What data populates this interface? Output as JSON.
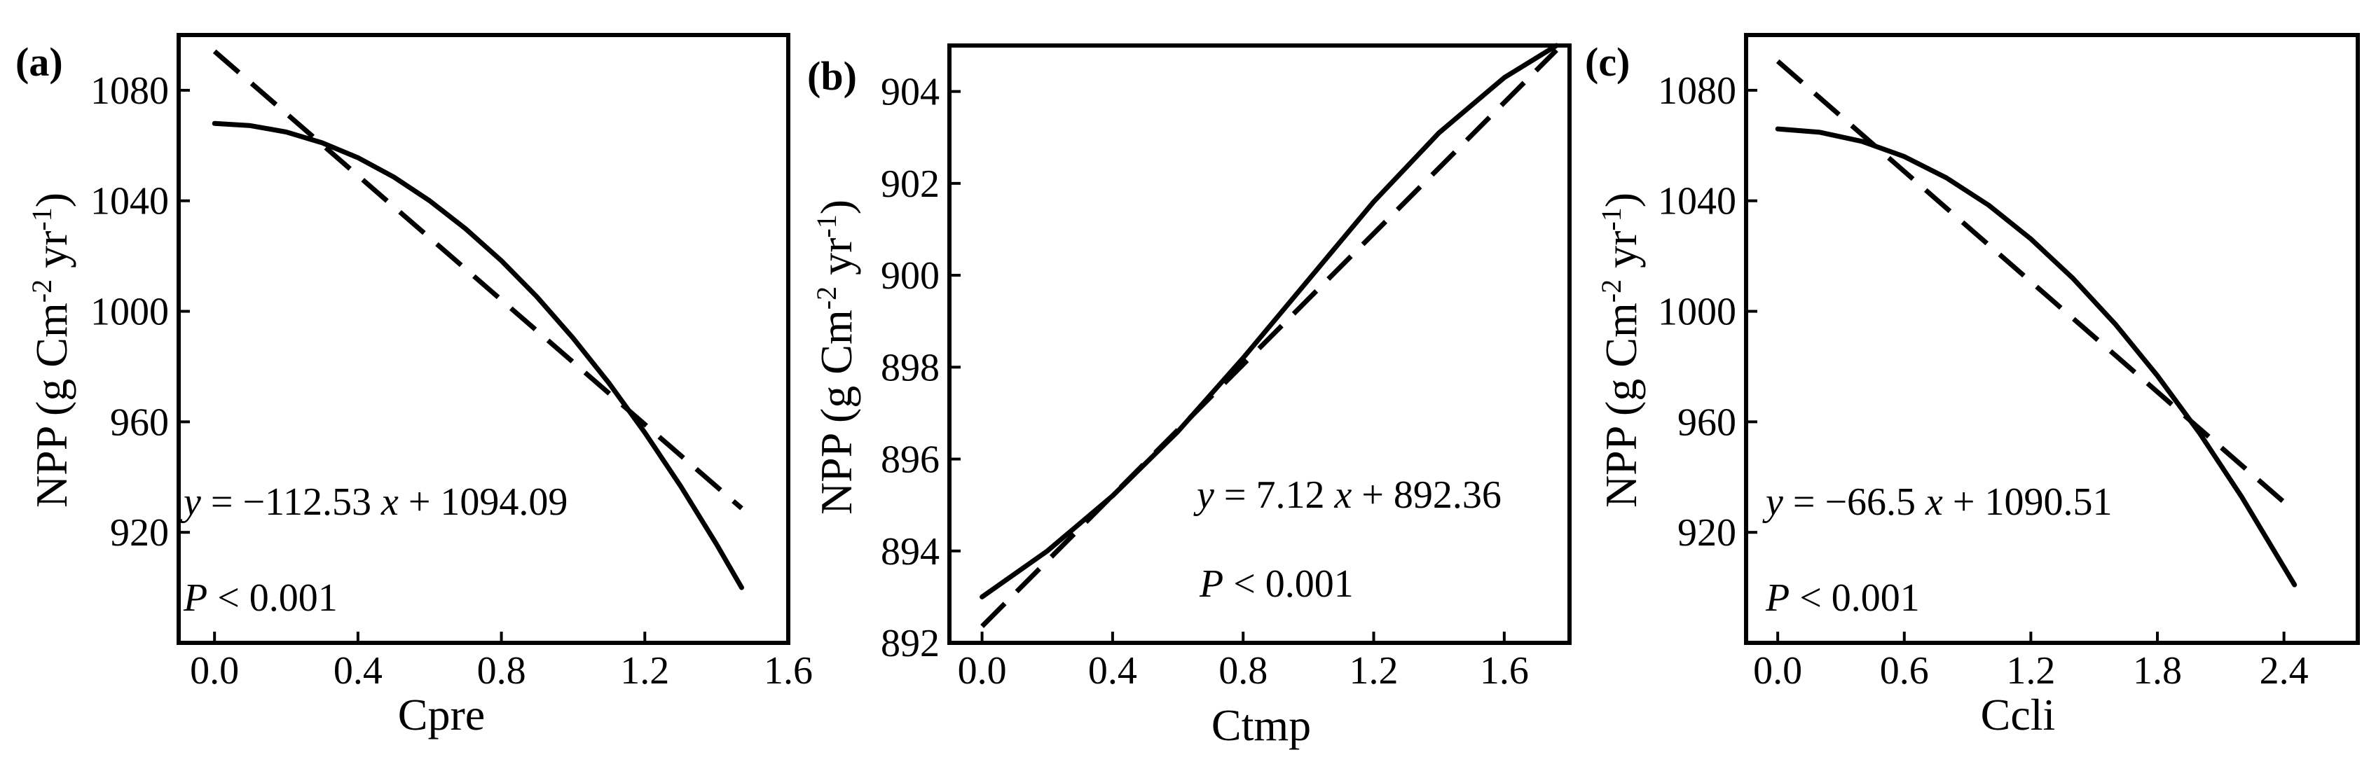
{
  "figure": {
    "panels": [
      {
        "label": "(a)"
      },
      {
        "label": "(b)"
      },
      {
        "label": "(c)"
      }
    ]
  },
  "chart_data": [
    {
      "type": "line",
      "panel_label": "(a)",
      "xlabel": "Cpre",
      "ylabel": {
        "prefix": "NPP (g Cm",
        "sup1": "-2",
        "mid": " yr",
        "sup2": "-1",
        "suffix": ")"
      },
      "xlim": [
        -0.1,
        1.6
      ],
      "ylim": [
        880,
        1100
      ],
      "xticks": [
        0.0,
        0.4,
        0.8,
        1.2,
        1.6
      ],
      "xtick_labels": [
        "0.0",
        "0.4",
        "0.8",
        "1.2",
        "1.6"
      ],
      "yticks": [
        920,
        960,
        1000,
        1040,
        1080
      ],
      "ytick_labels": [
        "920",
        "960",
        "1000",
        "1040",
        "1080"
      ],
      "series": [
        {
          "style": "solid",
          "x": [
            0.0,
            0.1,
            0.2,
            0.3,
            0.4,
            0.5,
            0.6,
            0.7,
            0.8,
            0.9,
            1.0,
            1.1,
            1.2,
            1.3,
            1.4,
            1.47
          ],
          "y": [
            1068,
            1067.2,
            1064.9,
            1061.0,
            1055.6,
            1048.6,
            1040.0,
            1029.9,
            1018.3,
            1005.1,
            990.3,
            974.0,
            956.1,
            936.7,
            915.7,
            900
          ]
        },
        {
          "style": "dashed",
          "x": [
            0.0,
            1.47
          ],
          "y": [
            1094.09,
            928.7
          ]
        }
      ],
      "annotations": {
        "equation": {
          "y": "y",
          "mid": " = −112.53 ",
          "x": "x",
          "rest": " + 1094.09"
        },
        "p_value": {
          "p": "P",
          "rest": " < 0.001"
        }
      }
    },
    {
      "type": "line",
      "panel_label": "(b)",
      "xlabel": "Ctmp",
      "ylabel": {
        "prefix": "NPP (g Cm",
        "sup1": "-2",
        "mid": " yr",
        "sup2": "-1",
        "suffix": ")"
      },
      "xlim": [
        -0.1,
        1.8
      ],
      "ylim": [
        892,
        905
      ],
      "xticks": [
        0.0,
        0.4,
        0.8,
        1.2,
        1.6
      ],
      "xtick_labels": [
        "0.0",
        "0.4",
        "0.8",
        "1.2",
        "1.6"
      ],
      "yticks": [
        892,
        894,
        896,
        898,
        900,
        902,
        904
      ],
      "ytick_labels": [
        "892",
        "894",
        "896",
        "898",
        "900",
        "902",
        "904"
      ],
      "series": [
        {
          "style": "solid",
          "x": [
            0.0,
            0.2,
            0.4,
            0.6,
            0.8,
            1.0,
            1.2,
            1.4,
            1.6,
            1.76
          ],
          "y": [
            893.0,
            894.0,
            895.2,
            896.6,
            898.2,
            899.9,
            901.6,
            903.1,
            904.3,
            905.0
          ]
        },
        {
          "style": "dashed",
          "x": [
            0.0,
            1.76
          ],
          "y": [
            892.36,
            904.9
          ]
        }
      ],
      "annotations": {
        "equation": {
          "y": "y",
          "mid": " = 7.12 ",
          "x": "x",
          "rest": " + 892.36"
        },
        "p_value": {
          "p": "P",
          "rest": " < 0.001"
        }
      }
    },
    {
      "type": "line",
      "panel_label": "(c)",
      "xlabel": "Ccli",
      "ylabel": {
        "prefix": "NPP (g Cm",
        "sup1": "-2",
        "mid": " yr",
        "sup2": "-1",
        "suffix": ")"
      },
      "xlim": [
        -0.15,
        2.75
      ],
      "ylim": [
        880,
        1100
      ],
      "xticks": [
        0.0,
        0.6,
        1.2,
        1.8,
        2.4
      ],
      "xtick_labels": [
        "0.0",
        "0.6",
        "1.2",
        "1.8",
        "2.4"
      ],
      "yticks": [
        920,
        960,
        1000,
        1040,
        1080
      ],
      "ytick_labels": [
        "920",
        "960",
        "1000",
        "1040",
        "1080"
      ],
      "series": [
        {
          "style": "solid",
          "x": [
            0.0,
            0.2,
            0.4,
            0.6,
            0.8,
            1.0,
            1.2,
            1.4,
            1.6,
            1.8,
            2.0,
            2.2,
            2.45
          ],
          "y": [
            1066,
            1064.8,
            1061.5,
            1056.0,
            1048.3,
            1038.4,
            1026.2,
            1011.9,
            995.4,
            976.7,
            955.9,
            932.8,
            901.0
          ]
        },
        {
          "style": "dashed",
          "x": [
            0.0,
            2.45
          ],
          "y": [
            1090.51,
            927.6
          ]
        }
      ],
      "annotations": {
        "equation": {
          "y": "y",
          "mid": " = −66.5 ",
          "x": "x",
          "rest": " + 1090.51"
        },
        "p_value": {
          "p": "P",
          "rest": " < 0.001"
        }
      }
    }
  ]
}
